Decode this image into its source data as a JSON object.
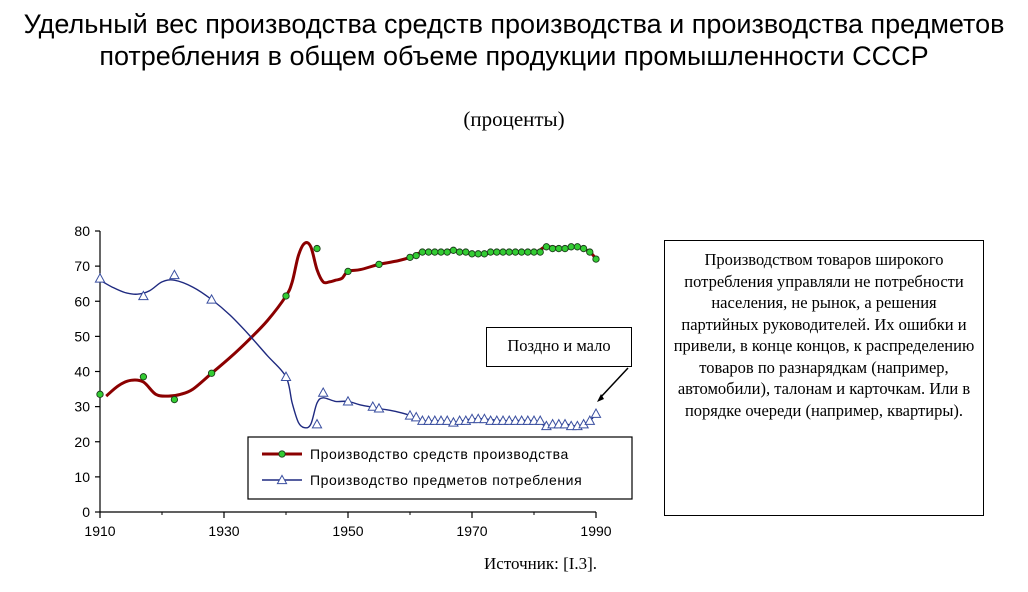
{
  "chart_data": {
    "type": "line",
    "title": "Удельный вес производства средств производства и производства предметов потребления в общем объеме продукции промышленности СССР",
    "subtitle": "(проценты)",
    "xlabel": "",
    "ylabel": "",
    "xlim": [
      1910,
      1990
    ],
    "ylim": [
      0,
      80
    ],
    "x_ticks": [
      1910,
      1930,
      1950,
      1970,
      1990
    ],
    "y_ticks": [
      0,
      10,
      20,
      30,
      40,
      50,
      60,
      70,
      80
    ],
    "grid": false,
    "legend_position": "bottom-right",
    "series": [
      {
        "name": "Производство средств производства",
        "color": "#8b0000",
        "marker": "circle",
        "marker_color": "#33cc33",
        "points": [
          [
            1910,
            33.5
          ],
          [
            1917,
            38.5
          ],
          [
            1922,
            32
          ],
          [
            1928,
            39.5
          ],
          [
            1940,
            61.5
          ],
          [
            1945,
            75
          ],
          [
            1950,
            68.5
          ],
          [
            1955,
            70.5
          ],
          [
            1960,
            72.5
          ],
          [
            1961,
            73
          ],
          [
            1962,
            74
          ],
          [
            1963,
            74
          ],
          [
            1964,
            74
          ],
          [
            1965,
            74
          ],
          [
            1966,
            74
          ],
          [
            1967,
            74.5
          ],
          [
            1968,
            74
          ],
          [
            1969,
            74
          ],
          [
            1970,
            73.5
          ],
          [
            1971,
            73.5
          ],
          [
            1972,
            73.5
          ],
          [
            1973,
            74
          ],
          [
            1974,
            74
          ],
          [
            1975,
            74
          ],
          [
            1976,
            74
          ],
          [
            1977,
            74
          ],
          [
            1978,
            74
          ],
          [
            1979,
            74
          ],
          [
            1980,
            74
          ],
          [
            1981,
            74
          ],
          [
            1982,
            75.5
          ],
          [
            1983,
            75
          ],
          [
            1984,
            75
          ],
          [
            1985,
            75
          ],
          [
            1986,
            75.5
          ],
          [
            1987,
            75.5
          ],
          [
            1988,
            75
          ],
          [
            1989,
            74
          ],
          [
            1990,
            72
          ]
        ],
        "curve": [
          [
            1911,
            33
          ],
          [
            1913,
            36
          ],
          [
            1915,
            37.5
          ],
          [
            1917,
            37
          ],
          [
            1919,
            33.5
          ],
          [
            1921,
            33
          ],
          [
            1923,
            33.5
          ],
          [
            1925,
            35
          ],
          [
            1928,
            39.5
          ],
          [
            1931,
            44
          ],
          [
            1934,
            49
          ],
          [
            1937,
            54.5
          ],
          [
            1940,
            61.5
          ],
          [
            1941,
            65.5
          ],
          [
            1942,
            73
          ],
          [
            1943,
            76.5
          ],
          [
            1944,
            75.5
          ],
          [
            1945,
            69
          ],
          [
            1946,
            65.5
          ],
          [
            1947,
            65.5
          ],
          [
            1948,
            66
          ],
          [
            1949,
            66.5
          ],
          [
            1950,
            68.5
          ],
          [
            1952,
            69
          ],
          [
            1955,
            70.5
          ],
          [
            1958,
            71.5
          ],
          [
            1960,
            72.5
          ],
          [
            1962,
            74
          ],
          [
            1965,
            74
          ],
          [
            1967,
            74.5
          ],
          [
            1970,
            73.5
          ],
          [
            1972,
            73.5
          ],
          [
            1975,
            74
          ],
          [
            1980,
            74
          ],
          [
            1982,
            75.5
          ],
          [
            1985,
            75
          ],
          [
            1987,
            75.5
          ],
          [
            1989,
            74
          ],
          [
            1990,
            72
          ]
        ]
      },
      {
        "name": "Производство предметов потребления",
        "color": "#1f2a80",
        "marker": "triangle",
        "marker_color": "#ffffff",
        "points": [
          [
            1910,
            66.5
          ],
          [
            1917,
            61.5
          ],
          [
            1922,
            67.5
          ],
          [
            1928,
            60.5
          ],
          [
            1940,
            38.5
          ],
          [
            1945,
            25
          ],
          [
            1946,
            34
          ],
          [
            1950,
            31.5
          ],
          [
            1954,
            30
          ],
          [
            1955,
            29.5
          ],
          [
            1960,
            27.5
          ],
          [
            1961,
            27
          ],
          [
            1962,
            26
          ],
          [
            1963,
            26
          ],
          [
            1964,
            26
          ],
          [
            1965,
            26
          ],
          [
            1966,
            26
          ],
          [
            1967,
            25.5
          ],
          [
            1968,
            26
          ],
          [
            1969,
            26
          ],
          [
            1970,
            26.5
          ],
          [
            1971,
            26.5
          ],
          [
            1972,
            26.5
          ],
          [
            1973,
            26
          ],
          [
            1974,
            26
          ],
          [
            1975,
            26
          ],
          [
            1976,
            26
          ],
          [
            1977,
            26
          ],
          [
            1978,
            26
          ],
          [
            1979,
            26
          ],
          [
            1980,
            26
          ],
          [
            1981,
            26
          ],
          [
            1982,
            24.5
          ],
          [
            1983,
            25
          ],
          [
            1984,
            25
          ],
          [
            1985,
            25
          ],
          [
            1986,
            24.5
          ],
          [
            1987,
            24.5
          ],
          [
            1988,
            25
          ],
          [
            1989,
            26
          ],
          [
            1990,
            28
          ]
        ],
        "curve": [
          [
            1910,
            66
          ],
          [
            1912,
            64
          ],
          [
            1914,
            62.5
          ],
          [
            1916,
            62
          ],
          [
            1918,
            63
          ],
          [
            1920,
            65.5
          ],
          [
            1922,
            66
          ],
          [
            1925,
            64
          ],
          [
            1928,
            60.5
          ],
          [
            1931,
            56
          ],
          [
            1934,
            50.5
          ],
          [
            1937,
            44.5
          ],
          [
            1940,
            38.5
          ],
          [
            1941,
            31
          ],
          [
            1942,
            25.5
          ],
          [
            1943,
            24
          ],
          [
            1944,
            25
          ],
          [
            1945,
            31
          ],
          [
            1946,
            32.5
          ],
          [
            1948,
            31.5
          ],
          [
            1950,
            31.5
          ],
          [
            1952,
            30.5
          ],
          [
            1955,
            29.5
          ],
          [
            1958,
            28.5
          ],
          [
            1960,
            27.5
          ],
          [
            1962,
            26
          ],
          [
            1965,
            26
          ],
          [
            1967,
            25.5
          ],
          [
            1970,
            26.5
          ],
          [
            1972,
            26.5
          ],
          [
            1975,
            26
          ],
          [
            1980,
            26
          ],
          [
            1982,
            24.5
          ],
          [
            1985,
            25
          ],
          [
            1987,
            24.5
          ],
          [
            1989,
            26
          ],
          [
            1990,
            28
          ]
        ]
      }
    ],
    "annotations": {
      "callout": "Поздно и мало",
      "comment": "Производством товаров широкого потребления управляли не потребности населения, не рынок, а решения партийных руководителей. Их ошибки и привели, в конце концов, к распределению товаров по разнарядкам (например, автомобили), талонам и карточкам. Или в порядке очереди (например, квартиры).",
      "source": "Источник: [I.3]."
    }
  }
}
